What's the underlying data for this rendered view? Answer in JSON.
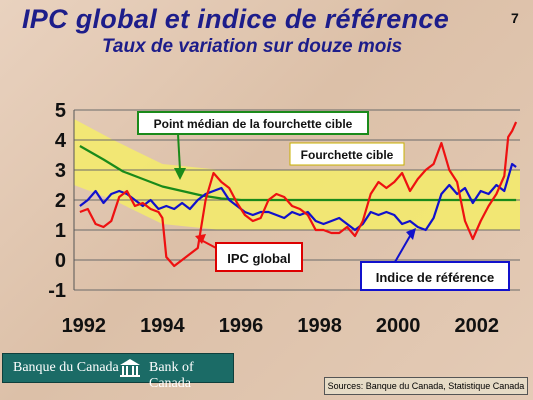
{
  "slide": {
    "title": "IPC global et indice de référence",
    "subtitle": "Taux de variation sur douze mois",
    "page_number": "7"
  },
  "footer": {
    "logo_fr": "Banque du Canada",
    "logo_en": "Bank of Canada",
    "sources": "Sources: Banque du Canada, Statistique Canada"
  },
  "colors": {
    "ipc": "#ee1111",
    "core": "#1111cc",
    "midpoint": "#1a8a1a",
    "band": "#f4ec6a",
    "annotation_box_border_red": "#dd0000",
    "annotation_box_border_blue": "#1111cc",
    "annotation_box_border_green": "#1a8a1a"
  },
  "chart_data": {
    "type": "line",
    "title": "IPC global et indice de référence",
    "subtitle": "Taux de variation sur douze mois",
    "x_ticks": [
      "1992",
      "1994",
      "1996",
      "1998",
      "2000",
      "2002"
    ],
    "y_ticks": [
      "5",
      "4",
      "3",
      "2",
      "1",
      "0",
      "-1"
    ],
    "xlim": [
      1991.75,
      2003.1
    ],
    "ylim": [
      -1,
      5
    ],
    "grid": true,
    "annotations": {
      "midpoint_label": "Point médian de la fourchette cible",
      "band_label": "Fourchette cible",
      "ipc_label": "IPC global",
      "core_label": "Indice de référence"
    },
    "target_band": [
      {
        "x": 1991.75,
        "low": 2.5,
        "high": 4.7
      },
      {
        "x": 1992.75,
        "low": 2.0,
        "high": 4.0
      },
      {
        "x": 1994.0,
        "low": 1.2,
        "high": 3.2
      },
      {
        "x": 1995.5,
        "low": 1.0,
        "high": 3.0
      },
      {
        "x": 2003.1,
        "low": 1.0,
        "high": 3.0
      }
    ],
    "series": [
      {
        "name": "IPC global",
        "x": [
          1991.9,
          1992.1,
          1992.3,
          1992.5,
          1992.7,
          1992.9,
          1993.1,
          1993.3,
          1993.5,
          1993.7,
          1993.9,
          1994.0,
          1994.1,
          1994.3,
          1994.5,
          1994.7,
          1994.9,
          1995.1,
          1995.3,
          1995.5,
          1995.7,
          1995.9,
          1996.1,
          1996.3,
          1996.5,
          1996.7,
          1996.9,
          1997.1,
          1997.3,
          1997.5,
          1997.7,
          1997.9,
          1998.1,
          1998.3,
          1998.5,
          1998.7,
          1998.9,
          1999.1,
          1999.3,
          1999.5,
          1999.7,
          1999.9,
          2000.1,
          2000.3,
          2000.5,
          2000.7,
          2000.9,
          2001.1,
          2001.3,
          2001.5,
          2001.7,
          2001.9,
          2002.1,
          2002.3,
          2002.5,
          2002.7,
          2002.8,
          2002.9,
          2003.0
        ],
        "values": [
          1.6,
          1.7,
          1.2,
          1.1,
          1.3,
          2.1,
          2.3,
          1.8,
          1.9,
          1.7,
          1.6,
          1.4,
          0.1,
          -0.2,
          0.0,
          0.2,
          0.4,
          2.0,
          2.9,
          2.6,
          2.4,
          1.9,
          1.5,
          1.3,
          1.4,
          2.0,
          2.2,
          2.1,
          1.8,
          1.7,
          1.5,
          1.0,
          1.0,
          0.9,
          0.9,
          1.1,
          0.8,
          1.3,
          2.2,
          2.6,
          2.4,
          2.6,
          2.9,
          2.3,
          2.7,
          3.0,
          3.2,
          3.9,
          3.0,
          2.6,
          1.3,
          0.7,
          1.3,
          1.8,
          2.2,
          2.8,
          4.1,
          4.3,
          4.6
        ]
      },
      {
        "name": "Indice de référence",
        "x": [
          1991.9,
          1992.1,
          1992.3,
          1992.5,
          1992.7,
          1992.9,
          1993.1,
          1993.3,
          1993.5,
          1993.7,
          1993.9,
          1994.1,
          1994.3,
          1994.5,
          1994.7,
          1994.9,
          1995.1,
          1995.3,
          1995.5,
          1995.7,
          1995.9,
          1996.1,
          1996.3,
          1996.5,
          1996.7,
          1996.9,
          1997.1,
          1997.3,
          1997.5,
          1997.7,
          1997.9,
          1998.1,
          1998.3,
          1998.5,
          1998.7,
          1998.9,
          1999.1,
          1999.3,
          1999.5,
          1999.7,
          1999.9,
          2000.1,
          2000.3,
          2000.5,
          2000.7,
          2000.9,
          2001.1,
          2001.3,
          2001.5,
          2001.7,
          2001.9,
          2002.1,
          2002.3,
          2002.5,
          2002.7,
          2002.9,
          2003.0
        ],
        "values": [
          1.8,
          2.0,
          2.3,
          1.9,
          2.2,
          2.3,
          2.2,
          2.0,
          1.8,
          2.0,
          1.7,
          1.8,
          1.7,
          1.9,
          1.7,
          2.0,
          2.2,
          2.3,
          2.4,
          2.0,
          1.8,
          1.6,
          1.5,
          1.6,
          1.6,
          1.5,
          1.4,
          1.6,
          1.5,
          1.6,
          1.3,
          1.2,
          1.3,
          1.4,
          1.2,
          1.0,
          1.2,
          1.6,
          1.5,
          1.6,
          1.5,
          1.2,
          1.3,
          1.1,
          1.0,
          1.4,
          2.2,
          2.5,
          2.2,
          2.4,
          1.9,
          2.3,
          2.2,
          2.5,
          2.3,
          3.2,
          3.1
        ]
      },
      {
        "name": "Point médian de la fourchette cible",
        "x": [
          1991.9,
          1992.5,
          1993.0,
          1993.5,
          1994.0,
          1994.5,
          1995.0,
          1995.5,
          1996.0,
          2003.0
        ],
        "values": [
          3.8,
          3.35,
          2.95,
          2.7,
          2.45,
          2.3,
          2.15,
          2.05,
          2.0,
          2.0
        ]
      }
    ]
  }
}
